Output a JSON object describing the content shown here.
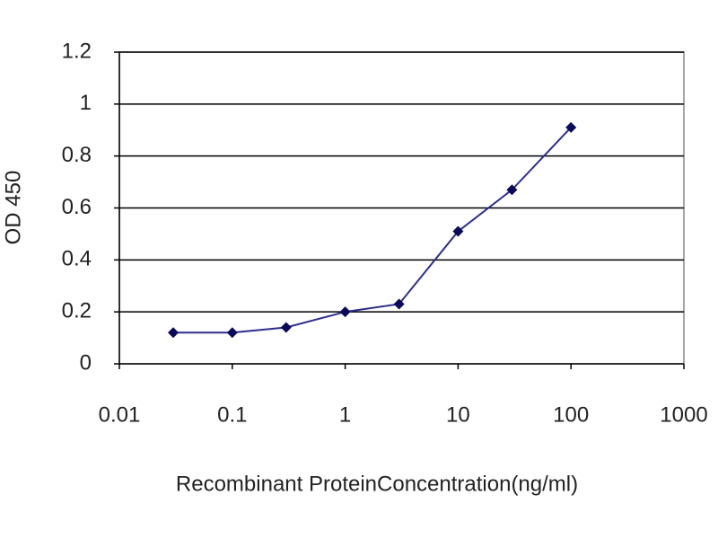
{
  "chart_data": {
    "type": "line",
    "x_label": "Recombinant ProteinConcentration(ng/ml)",
    "y_label": "OD 450",
    "x": [
      0.03,
      0.1,
      0.3,
      1,
      3,
      10,
      30,
      100
    ],
    "values": [
      0.12,
      0.12,
      0.14,
      0.2,
      0.23,
      0.51,
      0.67,
      0.91
    ],
    "color": "#2e2e8c",
    "marker_color": "#0a0a5a",
    "xlim": [
      0.01,
      1000
    ],
    "xticks": [
      0.01,
      0.1,
      1,
      10,
      100,
      1000
    ],
    "x_log": true,
    "ylim": [
      0,
      1.2
    ],
    "yticks": [
      0,
      0.2,
      0.4,
      0.6,
      0.8,
      1,
      1.2
    ],
    "grid": true
  }
}
